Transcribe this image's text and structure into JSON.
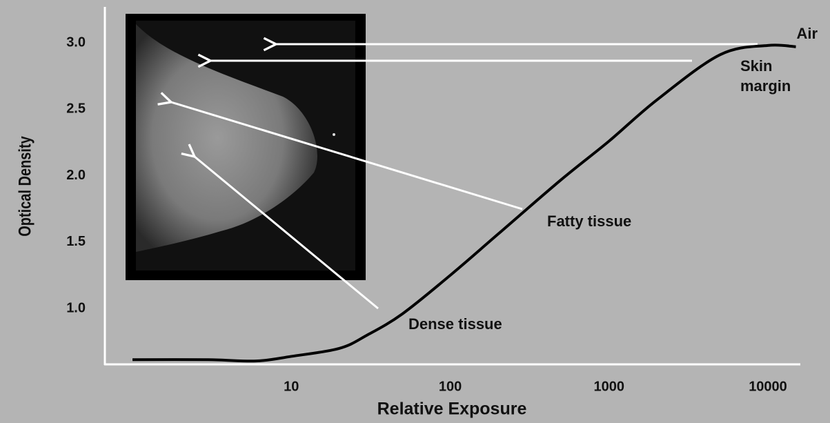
{
  "chart_data": {
    "type": "line",
    "x_label": "Relative Exposure",
    "y_label": "Optical Density",
    "x": [
      1,
      3,
      6,
      10,
      20,
      30,
      50,
      100,
      200,
      500,
      1000,
      2000,
      5000,
      10000,
      15000
    ],
    "series": [
      {
        "color": "#000000",
        "values": [
          0.615,
          0.615,
          0.605,
          0.64,
          0.7,
          0.8,
          0.96,
          1.25,
          1.56,
          1.97,
          2.26,
          2.57,
          2.91,
          2.98,
          2.97
        ]
      }
    ],
    "xlim": [
      0.67,
      16000
    ],
    "xticks": [
      10,
      100,
      1000,
      10000
    ],
    "x_log": true,
    "ylim": [
      0.58,
      3.27
    ],
    "yticks": [
      {
        "value": 1.0,
        "label": "1.0"
      },
      1.5,
      {
        "value": 2.0,
        "label": "2.0"
      },
      2.5,
      {
        "value": 3.0,
        "label": "3.0"
      }
    ],
    "grid": false,
    "annotations": [
      "Air",
      "Skin",
      "margin",
      "Fatty tissue",
      "Dense tissue"
    ]
  }
}
